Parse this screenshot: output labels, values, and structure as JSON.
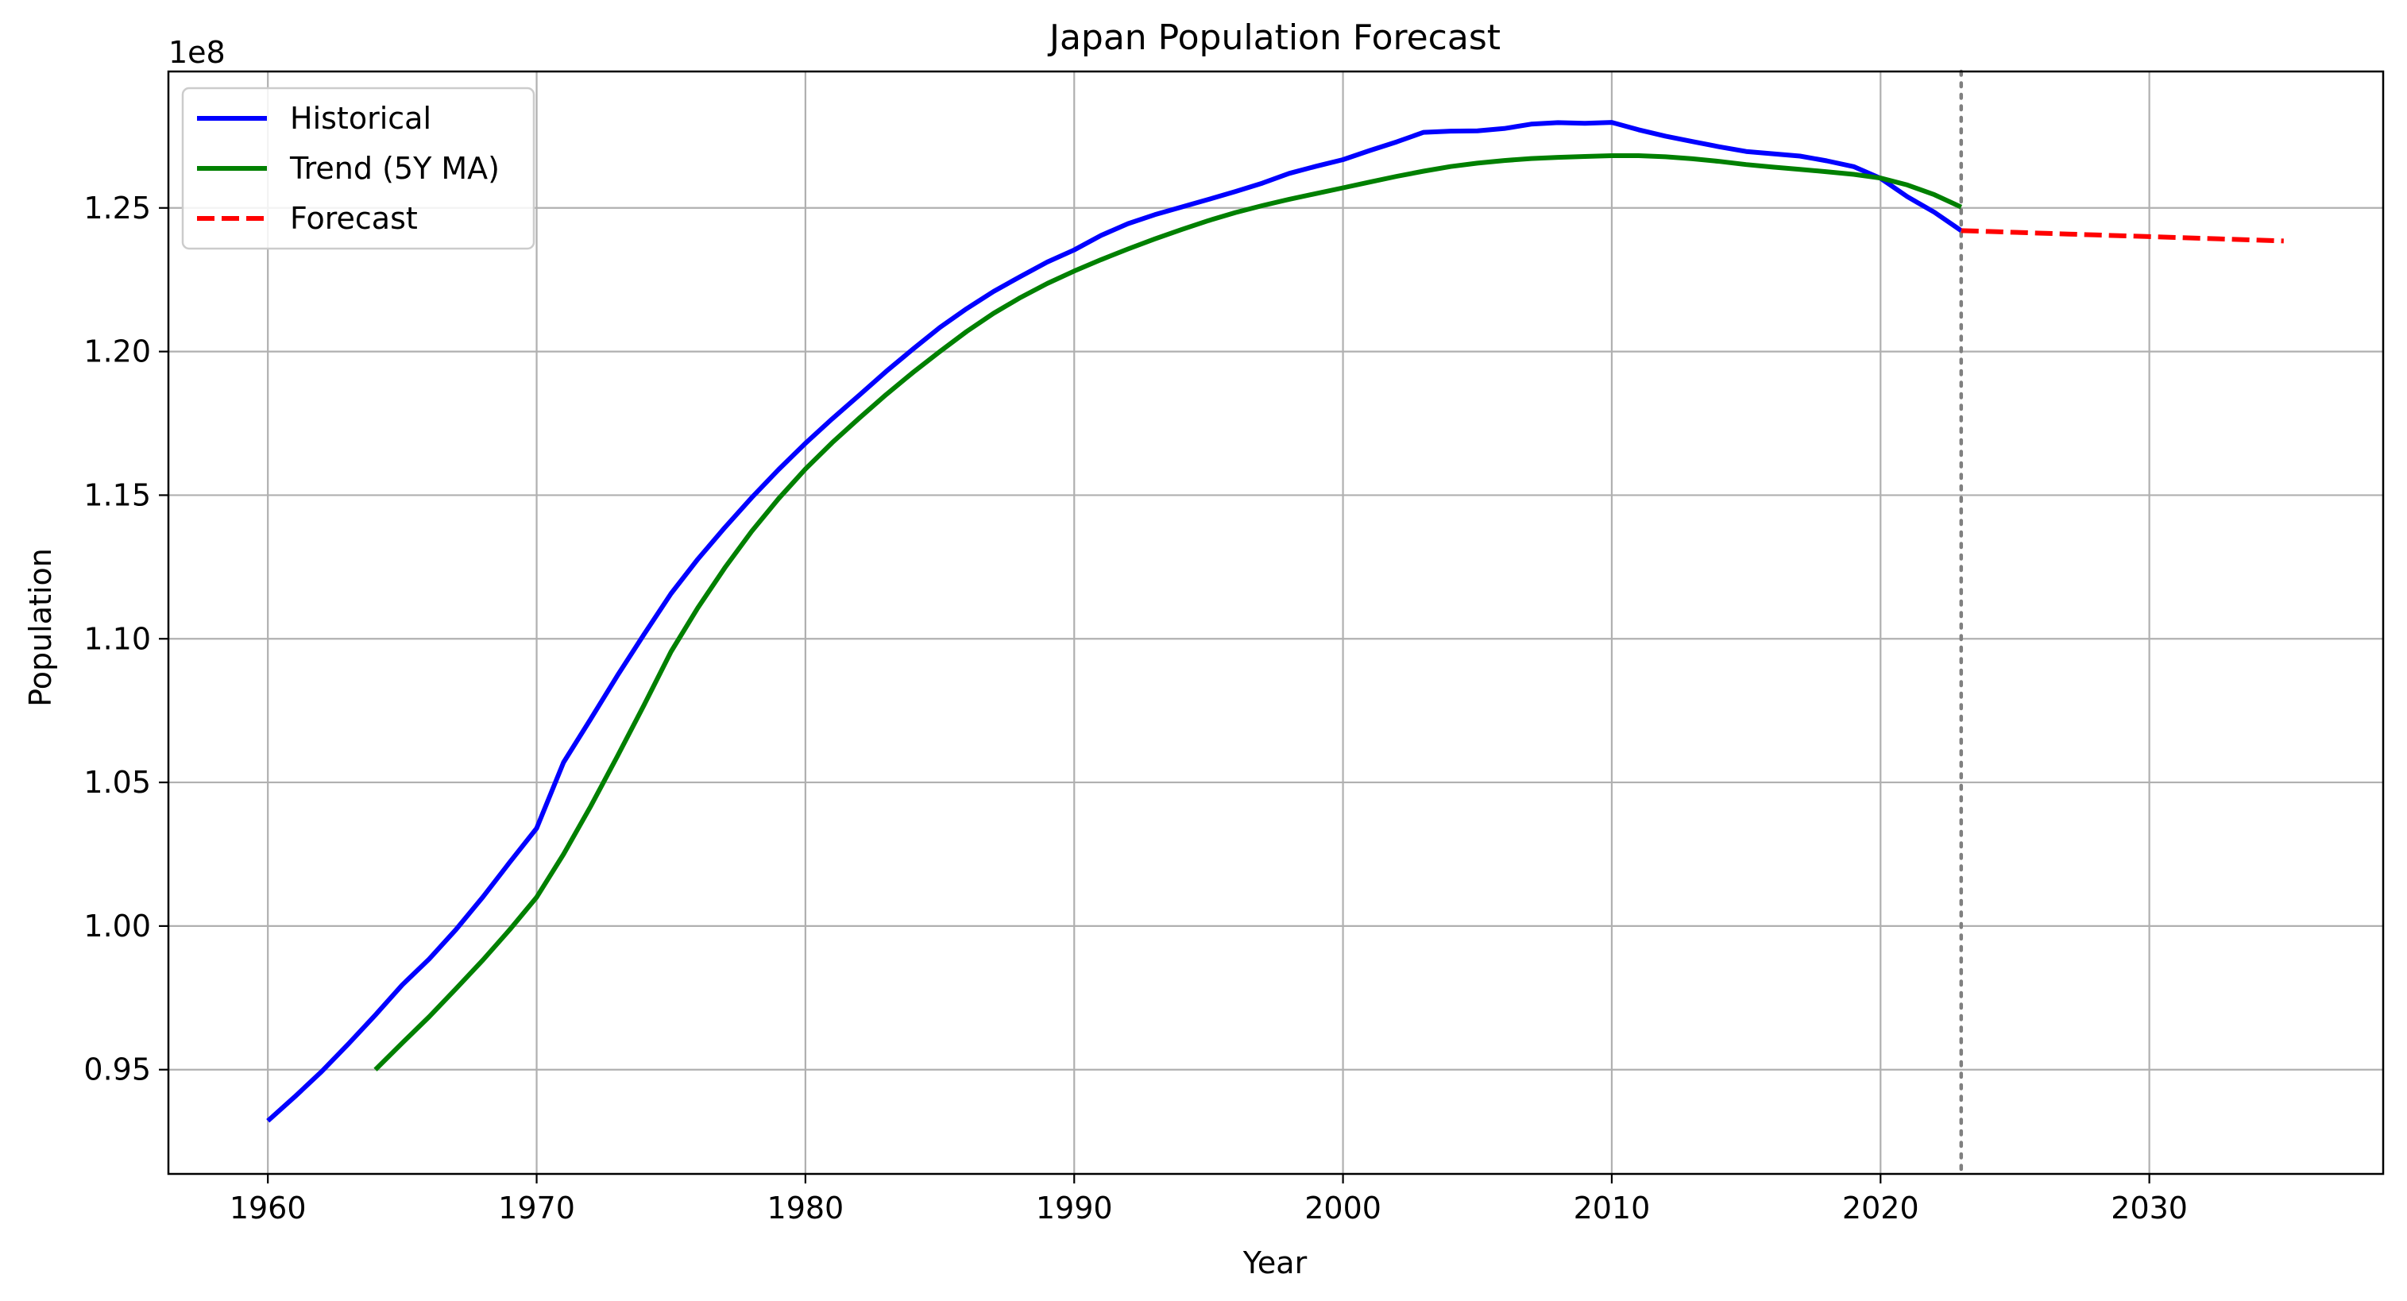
{
  "chart_data": {
    "type": "line",
    "title": "Japan Population Forecast",
    "xlabel": "Year",
    "ylabel": "Population",
    "y_offset_label": "1e8",
    "xlim": [
      1956.3,
      2038.7
    ],
    "ylim": [
      0.9137,
      1.2975
    ],
    "y_scale": 100000000,
    "x_ticks": [
      {
        "value": 1960,
        "label": "1960"
      },
      {
        "value": 1970,
        "label": "1970"
      },
      {
        "value": 1980,
        "label": "1980"
      },
      {
        "value": 1990,
        "label": "1990"
      },
      {
        "value": 2000,
        "label": "2000"
      },
      {
        "value": 2010,
        "label": "2010"
      },
      {
        "value": 2020,
        "label": "2020"
      },
      {
        "value": 2030,
        "label": "2030"
      }
    ],
    "y_ticks": [
      {
        "value": 0.95,
        "label": "0.95"
      },
      {
        "value": 1.0,
        "label": "1.00"
      },
      {
        "value": 1.05,
        "label": "1.05"
      },
      {
        "value": 1.1,
        "label": "1.10"
      },
      {
        "value": 1.15,
        "label": "1.15"
      },
      {
        "value": 1.2,
        "label": "1.20"
      },
      {
        "value": 1.25,
        "label": "1.25"
      }
    ],
    "grid": true,
    "legend_position": "top-left",
    "vline": {
      "x": 2023,
      "color": "#808080",
      "style": "dotted"
    },
    "series": [
      {
        "name": "Historical",
        "color": "#0000ff",
        "style": "solid",
        "points": [
          [
            1960,
            93216000
          ],
          [
            1961,
            94055000
          ],
          [
            1962,
            94933000
          ],
          [
            1963,
            95900000
          ],
          [
            1964,
            96903000
          ],
          [
            1965,
            97952000
          ],
          [
            1966,
            98851000
          ],
          [
            1967,
            99879000
          ],
          [
            1968,
            101011000
          ],
          [
            1969,
            102219000
          ],
          [
            1970,
            103402000
          ],
          [
            1971,
            105697000
          ],
          [
            1972,
            107188000
          ],
          [
            1973,
            108710000
          ],
          [
            1974,
            110162000
          ],
          [
            1975,
            111573000
          ],
          [
            1976,
            112775000
          ],
          [
            1977,
            113872000
          ],
          [
            1978,
            114913000
          ],
          [
            1979,
            115890000
          ],
          [
            1980,
            116807000
          ],
          [
            1981,
            117661000
          ],
          [
            1982,
            118480000
          ],
          [
            1983,
            119307000
          ],
          [
            1984,
            120083000
          ],
          [
            1985,
            120837000
          ],
          [
            1986,
            121492000
          ],
          [
            1987,
            122091000
          ],
          [
            1988,
            122613000
          ],
          [
            1989,
            123116000
          ],
          [
            1990,
            123537000
          ],
          [
            1991,
            124043000
          ],
          [
            1992,
            124452000
          ],
          [
            1993,
            124764000
          ],
          [
            1994,
            125034000
          ],
          [
            1995,
            125298000
          ],
          [
            1996,
            125573000
          ],
          [
            1997,
            125863000
          ],
          [
            1998,
            126201000
          ],
          [
            1999,
            126452000
          ],
          [
            2000,
            126680000
          ],
          [
            2001,
            127000000
          ],
          [
            2002,
            127300000
          ],
          [
            2003,
            127631000
          ],
          [
            2004,
            127673000
          ],
          [
            2005,
            127681000
          ],
          [
            2006,
            127764000
          ],
          [
            2007,
            127916000
          ],
          [
            2008,
            127970000
          ],
          [
            2009,
            127948000
          ],
          [
            2010,
            127978000
          ],
          [
            2011,
            127720000
          ],
          [
            2012,
            127498000
          ],
          [
            2013,
            127312000
          ],
          [
            2014,
            127130000
          ],
          [
            2015,
            126966000
          ],
          [
            2016,
            126884000
          ],
          [
            2017,
            126804000
          ],
          [
            2018,
            126638000
          ],
          [
            2019,
            126437000
          ],
          [
            2020,
            126031000
          ],
          [
            2021,
            125390000
          ],
          [
            2022,
            124850000
          ],
          [
            2023,
            124210000
          ]
        ]
      },
      {
        "name": "Trend (5Y MA)",
        "color": "#008000",
        "style": "solid",
        "points": [
          [
            1964,
            94998000
          ],
          [
            1965,
            95930000
          ],
          [
            1966,
            96840000
          ],
          [
            1967,
            97817000
          ],
          [
            1968,
            98817000
          ],
          [
            1969,
            99876000
          ],
          [
            1970,
            101000000
          ],
          [
            1971,
            102500000
          ],
          [
            1972,
            104150000
          ],
          [
            1973,
            105900000
          ],
          [
            1974,
            107700000
          ],
          [
            1975,
            109550000
          ],
          [
            1976,
            111080000
          ],
          [
            1977,
            112470000
          ],
          [
            1978,
            113740000
          ],
          [
            1979,
            114880000
          ],
          [
            1980,
            115910000
          ],
          [
            1981,
            116830000
          ],
          [
            1982,
            117680000
          ],
          [
            1983,
            118500000
          ],
          [
            1984,
            119270000
          ],
          [
            1985,
            120000000
          ],
          [
            1986,
            120700000
          ],
          [
            1987,
            121330000
          ],
          [
            1988,
            121880000
          ],
          [
            1989,
            122370000
          ],
          [
            1990,
            122800000
          ],
          [
            1991,
            123200000
          ],
          [
            1992,
            123570000
          ],
          [
            1993,
            123920000
          ],
          [
            1994,
            124250000
          ],
          [
            1995,
            124560000
          ],
          [
            1996,
            124840000
          ],
          [
            1997,
            125080000
          ],
          [
            1998,
            125300000
          ],
          [
            1999,
            125500000
          ],
          [
            2000,
            125700000
          ],
          [
            2001,
            125900000
          ],
          [
            2002,
            126100000
          ],
          [
            2003,
            126280000
          ],
          [
            2004,
            126440000
          ],
          [
            2005,
            126560000
          ],
          [
            2006,
            126650000
          ],
          [
            2007,
            126720000
          ],
          [
            2008,
            126760000
          ],
          [
            2009,
            126790000
          ],
          [
            2010,
            126820000
          ],
          [
            2011,
            126820000
          ],
          [
            2012,
            126780000
          ],
          [
            2013,
            126710000
          ],
          [
            2014,
            126620000
          ],
          [
            2015,
            126510000
          ],
          [
            2016,
            126420000
          ],
          [
            2017,
            126340000
          ],
          [
            2018,
            126260000
          ],
          [
            2019,
            126170000
          ],
          [
            2020,
            126040000
          ],
          [
            2021,
            125800000
          ],
          [
            2022,
            125460000
          ],
          [
            2023,
            125030000
          ]
        ]
      },
      {
        "name": "Forecast",
        "color": "#ff0000",
        "style": "dashed",
        "points": [
          [
            2023,
            124210000
          ],
          [
            2024,
            124180000
          ],
          [
            2025,
            124150000
          ],
          [
            2026,
            124120000
          ],
          [
            2027,
            124090000
          ],
          [
            2028,
            124060000
          ],
          [
            2029,
            124030000
          ],
          [
            2030,
            124000000
          ],
          [
            2031,
            123970000
          ],
          [
            2032,
            123940000
          ],
          [
            2033,
            123910000
          ],
          [
            2034,
            123880000
          ],
          [
            2035,
            123850000
          ]
        ]
      }
    ]
  }
}
